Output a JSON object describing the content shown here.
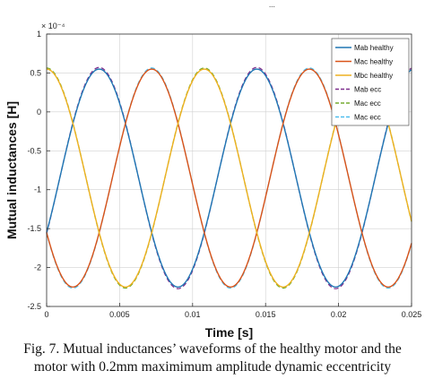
{
  "top_fragment": "...",
  "caption": {
    "line1": "Fig. 7. Mutual inductances’ waveforms of the healthy motor and  the",
    "line2": "motor with 0.2mm maximimum amplitude dynamic eccentricity"
  },
  "colors": {
    "Mab": "#1f77b4",
    "Mac": "#d95319",
    "Mbc": "#edb120",
    "Mab_ecc": "#7e2f8e",
    "Mac_ecc": "#77ac30",
    "Mbc_ecc": "#4dbeee",
    "grid": "#d0d0d0"
  },
  "chart_data": {
    "type": "line",
    "title": "",
    "xlabel": "Time [s]",
    "ylabel": "Mutual inductances [H]",
    "y_exponent_label": "× 10⁻⁴",
    "xlim": [
      0,
      0.025
    ],
    "ylim": [
      -2.5,
      1
    ],
    "x_ticks": [
      0,
      0.005,
      0.01,
      0.015,
      0.02,
      0.025
    ],
    "x_tick_labels": [
      "0",
      "0.005",
      "0.01",
      "0.015",
      "0.02",
      "0.025"
    ],
    "y_ticks": [
      1,
      0.5,
      0,
      -0.5,
      -1,
      -1.5,
      -2,
      -2.5
    ],
    "y_tick_labels": [
      "1",
      "0.5",
      "0",
      "-0.5",
      "-1",
      "-1.5",
      "-2",
      "-2.5"
    ],
    "grid": true,
    "legend_position": "top-right",
    "waveform": {
      "offset": -0.85,
      "amplitude": 1.4,
      "period": 0.0108
    },
    "series": [
      {
        "name": "Mab healthy",
        "color_key": "Mab",
        "dashed": false,
        "peak_time": 0.0036,
        "amp_scale": 1.0
      },
      {
        "name": "Mac healthy",
        "color_key": "Mac",
        "dashed": false,
        "peak_time": 0.0072,
        "amp_scale": 1.0
      },
      {
        "name": "Mbc healthy",
        "color_key": "Mbc",
        "dashed": false,
        "peak_time": 0.0,
        "amp_scale": 1.0
      },
      {
        "name": "Mab ecc",
        "color_key": "Mab_ecc",
        "dashed": true,
        "peak_time": 0.0036,
        "amp_scale": 1.015
      },
      {
        "name": "Mac ecc",
        "color_key": "Mac_ecc",
        "dashed": true,
        "peak_time": 0.0,
        "amp_scale": 1.01
      },
      {
        "name": "Mac ecc",
        "color_key": "Mbc_ecc",
        "dashed": true,
        "peak_time": 0.0072,
        "amp_scale": 1.01
      }
    ]
  }
}
